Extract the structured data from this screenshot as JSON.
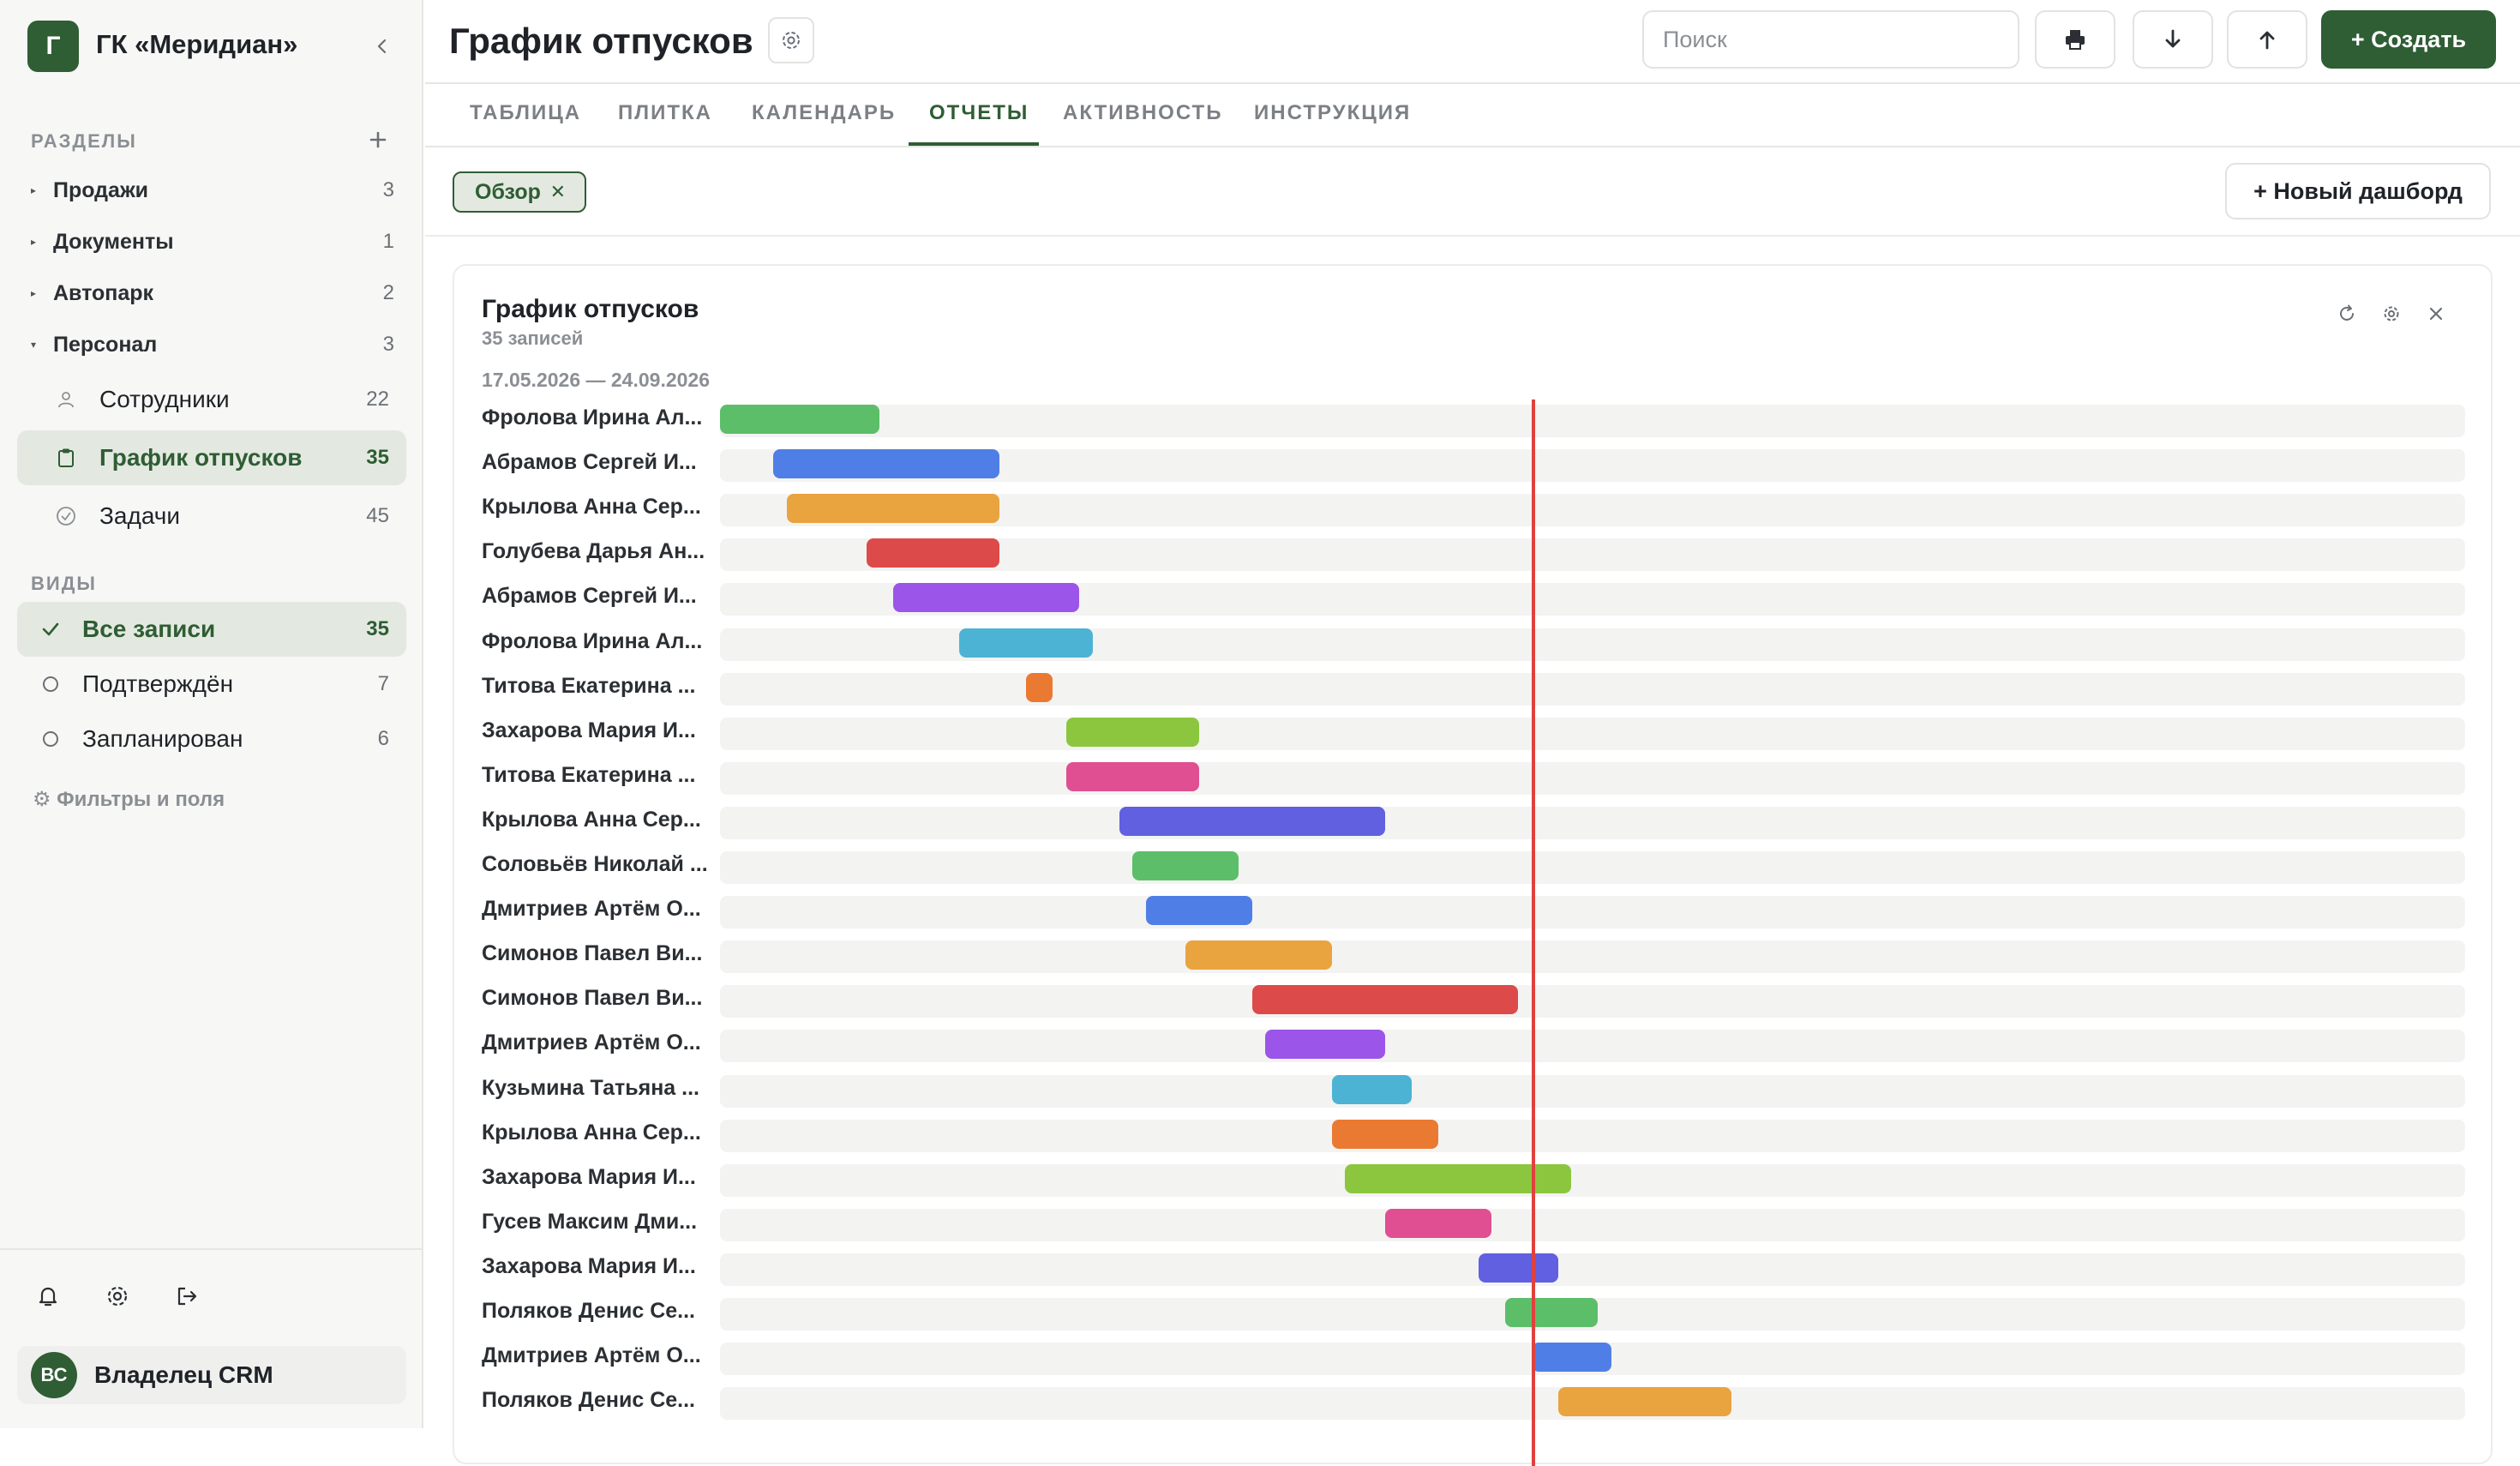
{
  "sidebar": {
    "logo_letter": "Г",
    "org_name": "ГК «Меридиан»",
    "sections_label": "РАЗДЕЛЫ",
    "groups": [
      {
        "label": "Продажи",
        "count": "3",
        "expanded": false
      },
      {
        "label": "Документы",
        "count": "1",
        "expanded": false
      },
      {
        "label": "Автопарк",
        "count": "2",
        "expanded": false
      },
      {
        "label": "Персонал",
        "count": "3",
        "expanded": true
      }
    ],
    "items": [
      {
        "label": "Сотрудники",
        "count": "22",
        "icon": "user-icon",
        "active": false
      },
      {
        "label": "График отпусков",
        "count": "35",
        "icon": "clipboard-icon",
        "active": true
      },
      {
        "label": "Задачи",
        "count": "45",
        "icon": "check-circle-icon",
        "active": false
      }
    ],
    "views_label": "ВИДЫ",
    "views": [
      {
        "label": "Все записи",
        "count": "35",
        "active": true
      },
      {
        "label": "Подтверждён",
        "count": "7",
        "active": false
      },
      {
        "label": "Запланирован",
        "count": "6",
        "active": false
      }
    ],
    "filters_label": "⚙ Фильтры и поля",
    "user": {
      "initials": "ВС",
      "name": "Владелец CRM"
    }
  },
  "header": {
    "title": "График отпусков",
    "search_placeholder": "Поиск",
    "create_label": "+ Создать"
  },
  "tabs": [
    {
      "label": "ТАБЛИЦА",
      "active": false
    },
    {
      "label": "ПЛИТКА",
      "active": false
    },
    {
      "label": "КАЛЕНДАРЬ",
      "active": false
    },
    {
      "label": "ОТЧЕТЫ",
      "active": true
    },
    {
      "label": "АКТИВНОСТЬ",
      "active": false
    },
    {
      "label": "ИНСТРУКЦИЯ",
      "active": false
    }
  ],
  "dashboard": {
    "chip_label": "Обзор",
    "new_dashboard_label": "+ Новый дашборд"
  },
  "card": {
    "title": "График отпусков",
    "subtitle": "35 записей",
    "range": "17.05.2026 — 24.09.2026"
  },
  "chart_data": {
    "type": "gantt",
    "x_range": [
      "17.05.2026",
      "24.09.2026"
    ],
    "today_marker": "2026-07-17",
    "rows": [
      {
        "name": "Фролова Ирина Ал...",
        "start": "2026-05-17",
        "end": "2026-05-29",
        "color": "#5dbe6a"
      },
      {
        "name": "Абрамов Сергей И...",
        "start": "2026-05-21",
        "end": "2026-06-07",
        "color": "#4f7fe6"
      },
      {
        "name": "Крылова Анна Сер...",
        "start": "2026-05-22",
        "end": "2026-06-07",
        "color": "#e9a33f"
      },
      {
        "name": "Голубева Дарья Ан...",
        "start": "2026-05-28",
        "end": "2026-06-07",
        "color": "#dd4a4a"
      },
      {
        "name": "Абрамов Сергей И...",
        "start": "2026-05-30",
        "end": "2026-06-13",
        "color": "#9b55e8"
      },
      {
        "name": "Фролова Ирина Ал...",
        "start": "2026-06-04",
        "end": "2026-06-14",
        "color": "#4db3d4"
      },
      {
        "name": "Титова Екатерина ...",
        "start": "2026-06-09",
        "end": "2026-06-11",
        "color": "#ea7a32"
      },
      {
        "name": "Захарова Мария И...",
        "start": "2026-06-12",
        "end": "2026-06-22",
        "color": "#8cc63f"
      },
      {
        "name": "Титова Екатерина ...",
        "start": "2026-06-12",
        "end": "2026-06-22",
        "color": "#df4f91"
      },
      {
        "name": "Крылова Анна Сер...",
        "start": "2026-06-16",
        "end": "2026-07-06",
        "color": "#6060e0"
      },
      {
        "name": "Соловьёв Николай ...",
        "start": "2026-06-17",
        "end": "2026-06-25",
        "color": "#5dbe6a"
      },
      {
        "name": "Дмитриев Артём О...",
        "start": "2026-06-18",
        "end": "2026-06-26",
        "color": "#4f7fe6"
      },
      {
        "name": "Симонов Павел Ви...",
        "start": "2026-06-21",
        "end": "2026-07-02",
        "color": "#e9a33f"
      },
      {
        "name": "Симонов Павел Ви...",
        "start": "2026-06-26",
        "end": "2026-07-16",
        "color": "#dd4a4a"
      },
      {
        "name": "Дмитриев Артём О...",
        "start": "2026-06-27",
        "end": "2026-07-06",
        "color": "#9b55e8"
      },
      {
        "name": "Кузьмина Татьяна ...",
        "start": "2026-07-02",
        "end": "2026-07-08",
        "color": "#4db3d4"
      },
      {
        "name": "Крылова Анна Сер...",
        "start": "2026-07-02",
        "end": "2026-07-10",
        "color": "#ea7a32"
      },
      {
        "name": "Захарова Мария И...",
        "start": "2026-07-03",
        "end": "2026-07-20",
        "color": "#8cc63f"
      },
      {
        "name": "Гусев Максим Дми...",
        "start": "2026-07-06",
        "end": "2026-07-14",
        "color": "#df4f91"
      },
      {
        "name": "Захарова Мария И...",
        "start": "2026-07-13",
        "end": "2026-07-19",
        "color": "#6060e0"
      },
      {
        "name": "Поляков Денис Се...",
        "start": "2026-07-15",
        "end": "2026-07-22",
        "color": "#5dbe6a"
      },
      {
        "name": "Дмитриев Артём О...",
        "start": "2026-07-17",
        "end": "2026-07-23",
        "color": "#4f7fe6"
      },
      {
        "name": "Поляков Денис Се...",
        "start": "2026-07-19",
        "end": "2026-08-01",
        "color": "#e9a33f"
      }
    ]
  }
}
